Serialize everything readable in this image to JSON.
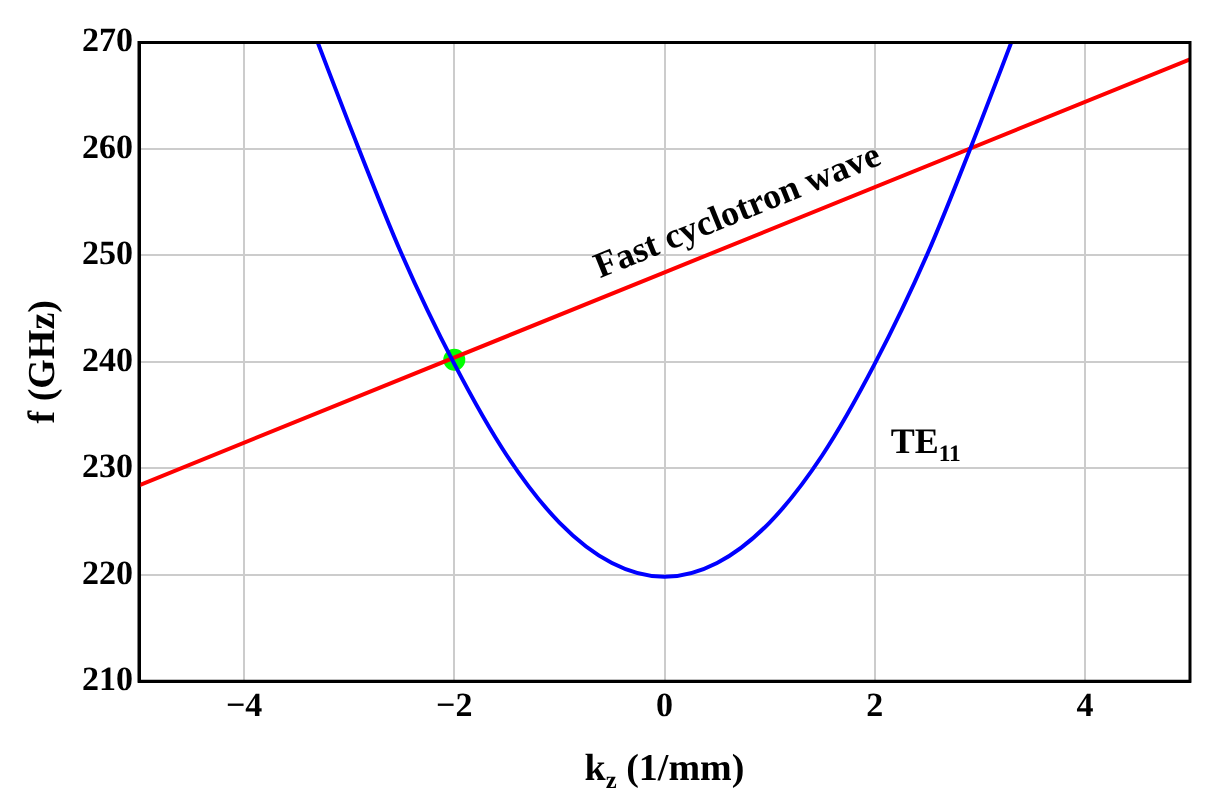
{
  "chart_data": {
    "type": "line",
    "xlabel": "k$_{z}$ (1/mm)",
    "ylabel": "f (GHz)",
    "xlim": [
      -5,
      5
    ],
    "xticks": [
      -4,
      -2,
      0,
      2,
      4
    ],
    "ylim": [
      210,
      270
    ],
    "yticks": [
      210,
      220,
      230,
      240,
      250,
      260,
      270
    ],
    "grid": true,
    "marker": "none",
    "line_style": "solid",
    "series": [
      {
        "name": "TE$_{11}$",
        "color": "#0000ff",
        "x": [
          -3.3,
          -3,
          -2.5,
          -2,
          -1.5,
          -1,
          -0.5,
          0,
          0.5,
          1,
          1.5,
          2,
          2.5,
          3,
          3.3
        ],
        "values": [
          270,
          262.3,
          250.1,
          239.8,
          231.2,
          224.9,
          221.1,
          219.8,
          221.1,
          224.9,
          231.2,
          239.8,
          250.1,
          262.3,
          270
        ]
      },
      {
        "name": "Fast cyclotron wave",
        "color": "#ff0000",
        "x": [
          -5,
          5
        ],
        "values": [
          228.4,
          268.4
        ]
      },
      {
        "type": "scatter",
        "color": "#00ff00",
        "marker": "circle",
        "x": [
          -2
        ],
        "values": [
          240.2
        ]
      }
    ]
  }
}
